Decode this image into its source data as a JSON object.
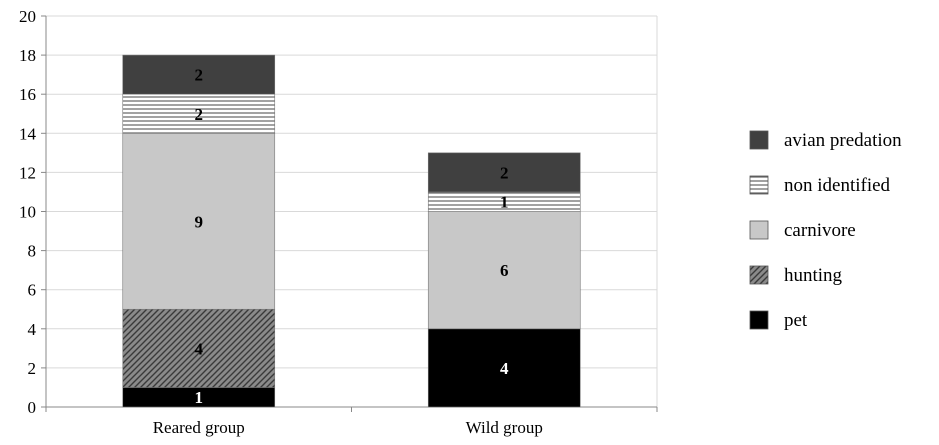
{
  "chart_data": {
    "type": "bar",
    "stacked": true,
    "categories": [
      "Reared group",
      "Wild group"
    ],
    "series": [
      {
        "name": "pet",
        "values": [
          1,
          4
        ],
        "color": "#000000",
        "pattern": "solid",
        "label_color": "#ffffff"
      },
      {
        "name": "hunting",
        "values": [
          4,
          0
        ],
        "color": "#8a8a8a",
        "pattern": "diagonal-hatch",
        "label_color": "#000000"
      },
      {
        "name": "carnivore",
        "values": [
          9,
          6
        ],
        "color": "#c8c8c8",
        "pattern": "solid",
        "label_color": "#000000"
      },
      {
        "name": "non identified",
        "values": [
          2,
          1
        ],
        "color": "#ffffff",
        "pattern": "horizontal-lines",
        "label_color": "#000000"
      },
      {
        "name": "avian predation",
        "values": [
          2,
          2
        ],
        "color": "#404040",
        "pattern": "solid",
        "label_color": "#000000"
      }
    ],
    "ylim": [
      0,
      20
    ],
    "yticks": [
      "0",
      "2",
      "4",
      "6",
      "8",
      "10",
      "12",
      "14",
      "16",
      "18",
      "20"
    ],
    "grid": true,
    "legend_position": "right",
    "legend_order": [
      "avian predation",
      "non identified",
      "carnivore",
      "hunting",
      "pet"
    ],
    "title": "",
    "xlabel": "",
    "ylabel": ""
  }
}
